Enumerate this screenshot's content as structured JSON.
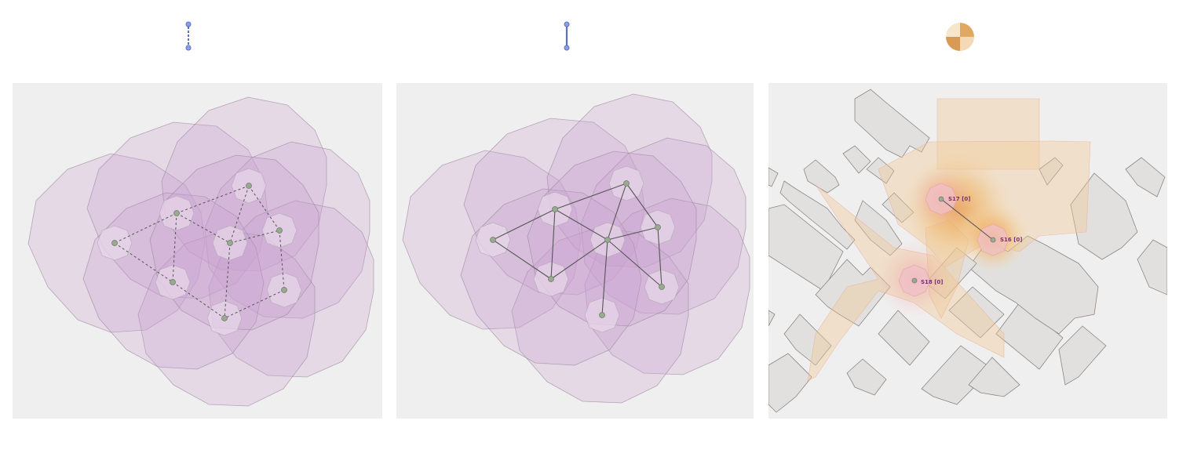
{
  "legend": {
    "dashed_link_icon": "dashed-link-icon",
    "solid_link_icon": "solid-link-icon",
    "coverage_icon": "coverage-quarter-icon"
  },
  "colors": {
    "panel_bg": "#f0efef",
    "coverage_fill": "#c8a2cf",
    "node": "#9aaa90",
    "link": "#555555",
    "icon_blue": "#5a6fc8",
    "heat_orange": "#e8a050",
    "label": "#7a2f7a"
  },
  "map": {
    "sensors": [
      {
        "id": "s17",
        "label": "S17 [0]"
      },
      {
        "id": "s16",
        "label": "S16 [0]"
      },
      {
        "id": "s18",
        "label": "S18 [0]"
      }
    ]
  }
}
